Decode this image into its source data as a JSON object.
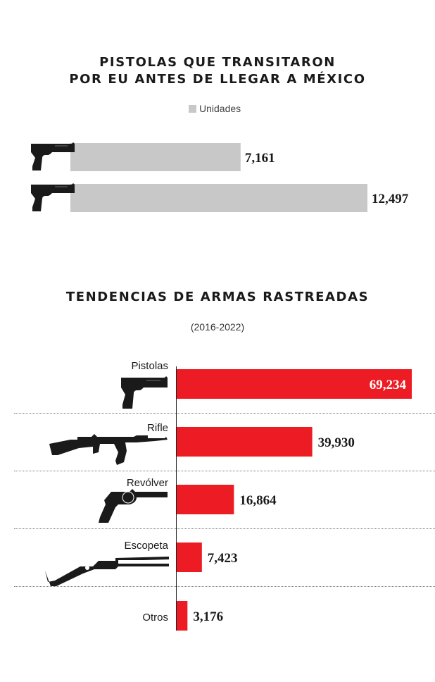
{
  "chart1": {
    "title_line1": "PISTOLAS QUE TRANSITARON",
    "title_line2": "POR EU ANTES DE LLEGAR A MÉXICO",
    "legend": "Unidades",
    "color": "#c8c8c8"
  },
  "chart2": {
    "title": "TENDENCIAS DE ARMAS RASTREADAS",
    "subtitle": "(2016-2022)",
    "color": "#ed1c24"
  },
  "chart_data": [
    {
      "type": "bar",
      "orientation": "horizontal",
      "title": "PISTOLAS QUE TRANSITARON POR EU ANTES DE LLEGAR A MÉXICO",
      "legend": [
        "Unidades"
      ],
      "values": [
        7161,
        12497
      ],
      "value_labels": [
        "7,161",
        "12,497"
      ],
      "colors": [
        "#c8c8c8"
      ]
    },
    {
      "type": "bar",
      "orientation": "horizontal",
      "title": "TENDENCIAS DE ARMAS RASTREADAS",
      "subtitle": "(2016-2022)",
      "categories": [
        "Pistolas",
        "Rifle",
        "Revólver",
        "Escopeta",
        "Otros"
      ],
      "values": [
        69234,
        39930,
        16864,
        7423,
        3176
      ],
      "value_labels": [
        "69,234",
        "39,930",
        "16,864",
        "7,423",
        "3,176"
      ],
      "colors": [
        "#ed1c24"
      ]
    }
  ]
}
